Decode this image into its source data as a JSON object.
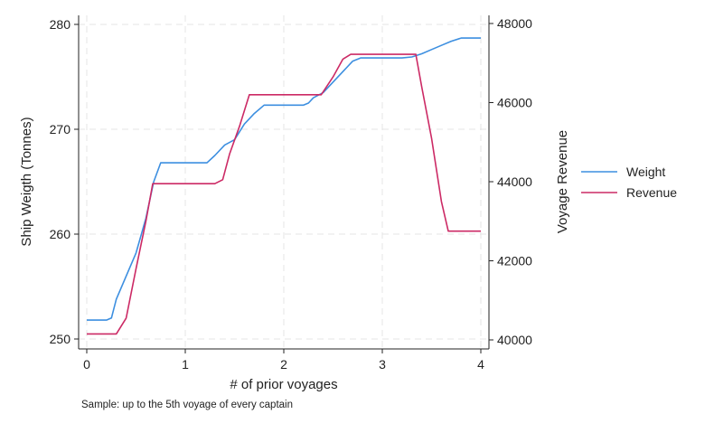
{
  "chart_data": {
    "type": "line",
    "title": "",
    "xlabel": "# of prior voyages",
    "ylabel_left": "Ship Weigth (Tonnes)",
    "ylabel_right": "Voyage Revenue",
    "xlim": [
      0,
      4
    ],
    "ylim_left": [
      250,
      280
    ],
    "ylim_right": [
      40000,
      48000
    ],
    "x_ticks": [
      0,
      1,
      2,
      3,
      4
    ],
    "y_ticks_left": [
      250,
      260,
      270,
      280
    ],
    "y_ticks_right": [
      40000,
      42000,
      44000,
      46000,
      48000
    ],
    "grid": true,
    "legend_position": "right",
    "series": [
      {
        "name": "Weight",
        "axis": "left",
        "color": "#3d8fe0",
        "x": [
          0,
          0.2,
          0.25,
          0.3,
          0.4,
          0.5,
          0.6,
          0.68,
          0.75,
          0.82,
          1.0,
          1.1,
          1.15,
          1.22,
          1.3,
          1.4,
          1.5,
          1.6,
          1.7,
          1.8,
          1.9,
          2.0,
          2.1,
          2.2,
          2.25,
          2.3,
          2.4,
          2.5,
          2.6,
          2.7,
          2.78,
          2.85,
          3.0,
          3.1,
          3.2,
          3.3,
          3.4,
          3.5,
          3.6,
          3.7,
          3.8,
          4.0
        ],
        "values": [
          251.8,
          251.8,
          252.0,
          253.8,
          256.0,
          258.2,
          261.5,
          265.0,
          266.8,
          266.8,
          266.8,
          266.8,
          266.8,
          266.8,
          267.5,
          268.5,
          269.0,
          270.5,
          271.5,
          272.3,
          272.3,
          272.3,
          272.3,
          272.3,
          272.5,
          273.0,
          273.5,
          274.5,
          275.5,
          276.5,
          276.8,
          276.8,
          276.8,
          276.8,
          276.8,
          276.9,
          277.2,
          277.6,
          278.0,
          278.4,
          278.7,
          278.7
        ]
      },
      {
        "name": "Revenue",
        "axis": "right",
        "color": "#cc2a65",
        "x": [
          0,
          0.3,
          0.4,
          0.5,
          0.6,
          0.67,
          0.75,
          1.0,
          1.3,
          1.38,
          1.45,
          1.55,
          1.65,
          2.0,
          2.2,
          2.38,
          2.5,
          2.6,
          2.68,
          3.0,
          3.25,
          3.34,
          3.4,
          3.5,
          3.6,
          3.67,
          3.8,
          4.0
        ],
        "values": [
          40150,
          40150,
          40550,
          41800,
          43000,
          43950,
          43950,
          43950,
          43950,
          44050,
          44700,
          45400,
          46200,
          46200,
          46200,
          46200,
          46650,
          47100,
          47220,
          47220,
          47220,
          47220,
          46400,
          45100,
          43500,
          42750,
          42750,
          42750
        ]
      }
    ],
    "note": "Sample: up to the 5th voyage of every captain"
  }
}
